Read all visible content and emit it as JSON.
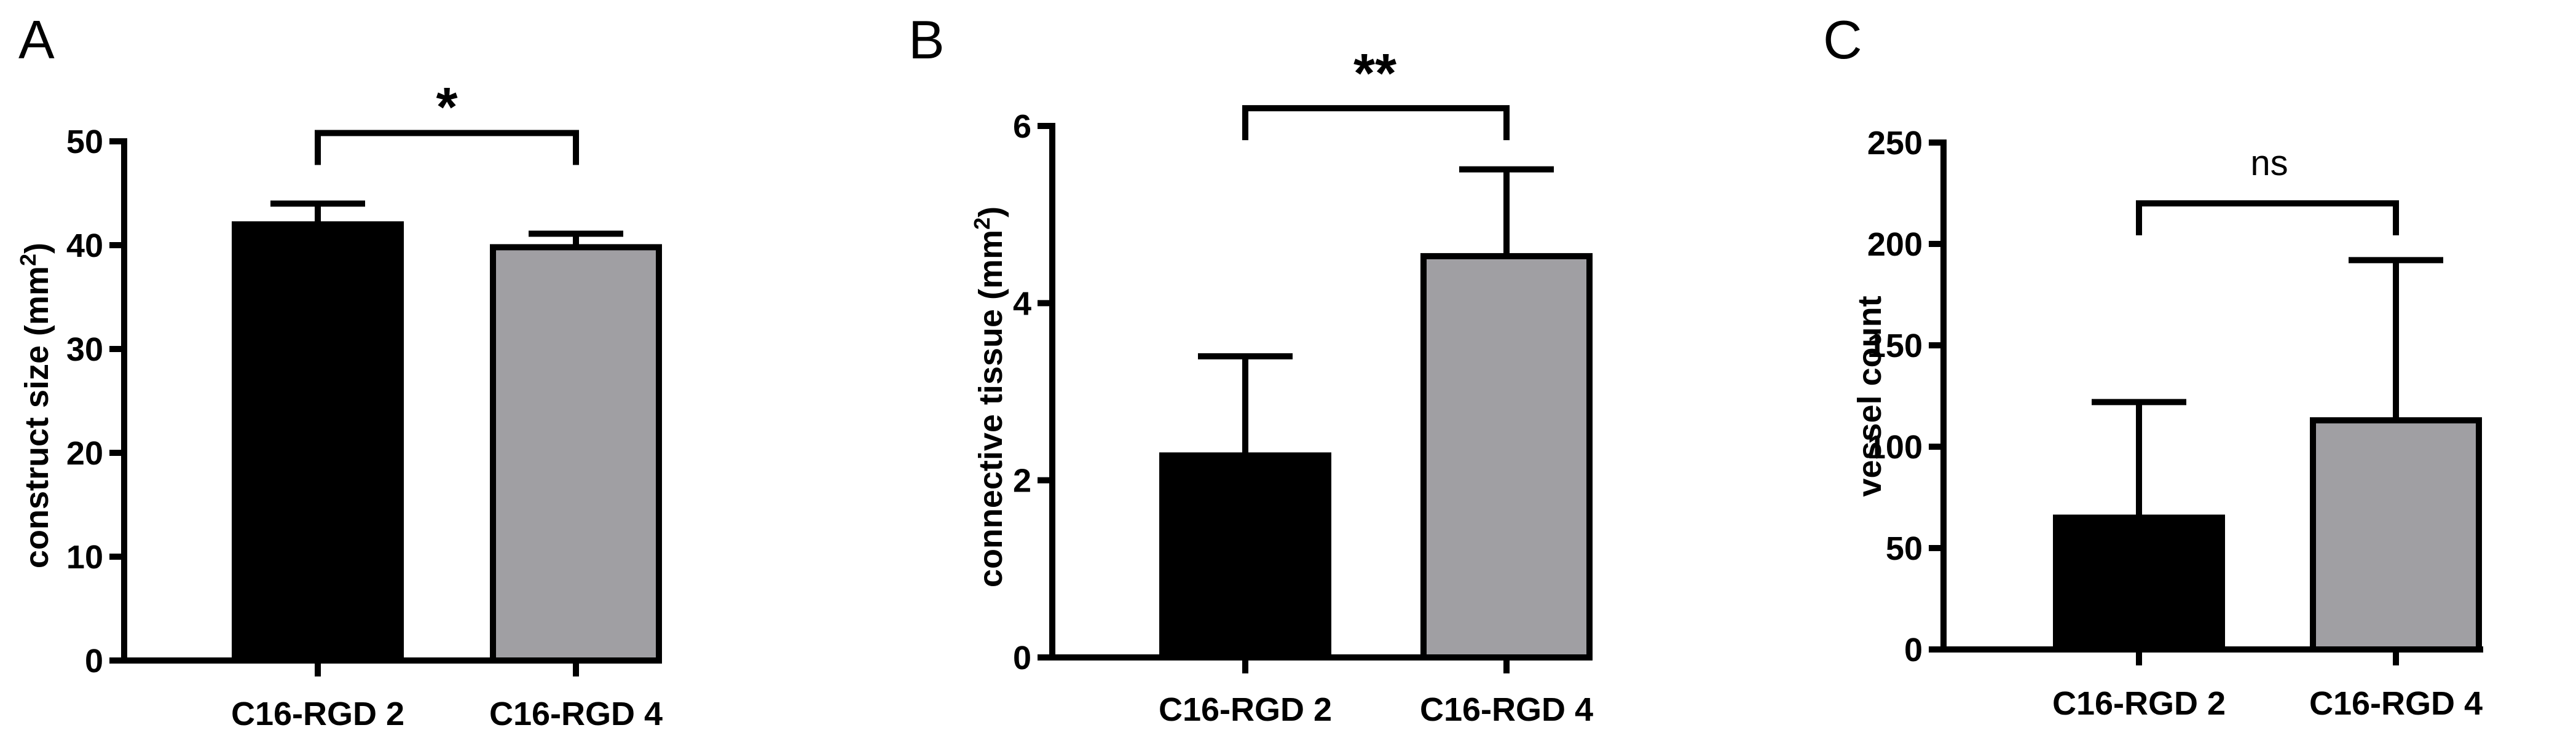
{
  "chart_data": [
    {
      "panel": "A",
      "type": "bar",
      "ylabel": "construct size (mm",
      "ylabel_sup": "2",
      "ylabel_tail": ")",
      "categories": [
        "C16-RGD 2",
        "C16-RGD 4"
      ],
      "values": [
        42.0,
        39.8
      ],
      "error_plus": [
        2.0,
        1.3
      ],
      "bar_colors": [
        "#000000",
        "#a09fa3"
      ],
      "ylim": [
        0,
        50
      ],
      "yticks": [
        "0",
        "10",
        "20",
        "30",
        "40",
        "50"
      ],
      "significance": "*",
      "bracket_level": 50.8
    },
    {
      "panel": "B",
      "type": "bar",
      "ylabel": "connective tissue (mm",
      "ylabel_sup": "2",
      "ylabel_tail": ")",
      "categories": [
        "C16-RGD 2",
        "C16-RGD 4"
      ],
      "values": [
        2.28,
        4.53
      ],
      "error_plus": [
        1.12,
        0.98
      ],
      "bar_colors": [
        "#000000",
        "#a09fa3"
      ],
      "ylim": [
        0,
        6
      ],
      "yticks": [
        "0",
        "2",
        "4",
        "6"
      ],
      "significance": "**",
      "bracket_level": 6.2
    },
    {
      "panel": "C",
      "type": "bar",
      "ylabel": "vessel count",
      "ylabel_sup": "",
      "ylabel_tail": "",
      "categories": [
        "C16-RGD 2",
        "C16-RGD 4"
      ],
      "values": [
        65,
        113
      ],
      "error_plus": [
        57,
        79
      ],
      "bar_colors": [
        "#000000",
        "#a09fa3"
      ],
      "ylim": [
        0,
        250
      ],
      "yticks": [
        "0",
        "50",
        "100",
        "150",
        "200",
        "250"
      ],
      "significance": "ns",
      "bracket_level": 220
    }
  ]
}
